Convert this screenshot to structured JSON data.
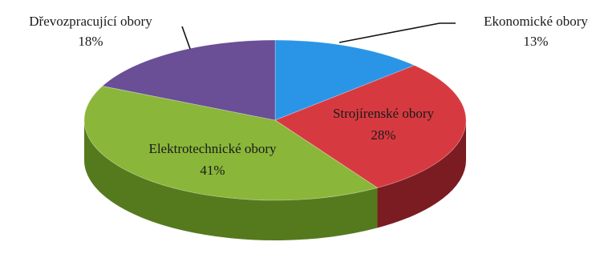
{
  "chart_data": {
    "type": "pie",
    "style": "3d",
    "slices": [
      {
        "name": "Ekonomické obory",
        "value": 13,
        "label": "13%",
        "color": "#2a95e6",
        "side_color": "#1a5f95"
      },
      {
        "name": "Strojírenské obory",
        "value": 28,
        "label": "28%",
        "color": "#d63a40",
        "side_color": "#7a1c22"
      },
      {
        "name": "Elektrotechnické obory",
        "value": 41,
        "label": "41%",
        "color": "#8ab63a",
        "side_color": "#557a1e"
      },
      {
        "name": "Dřevozpracující obory",
        "value": 18,
        "label": "18%",
        "color": "#6a4e96",
        "side_color": "#3f2c5c"
      }
    ]
  }
}
